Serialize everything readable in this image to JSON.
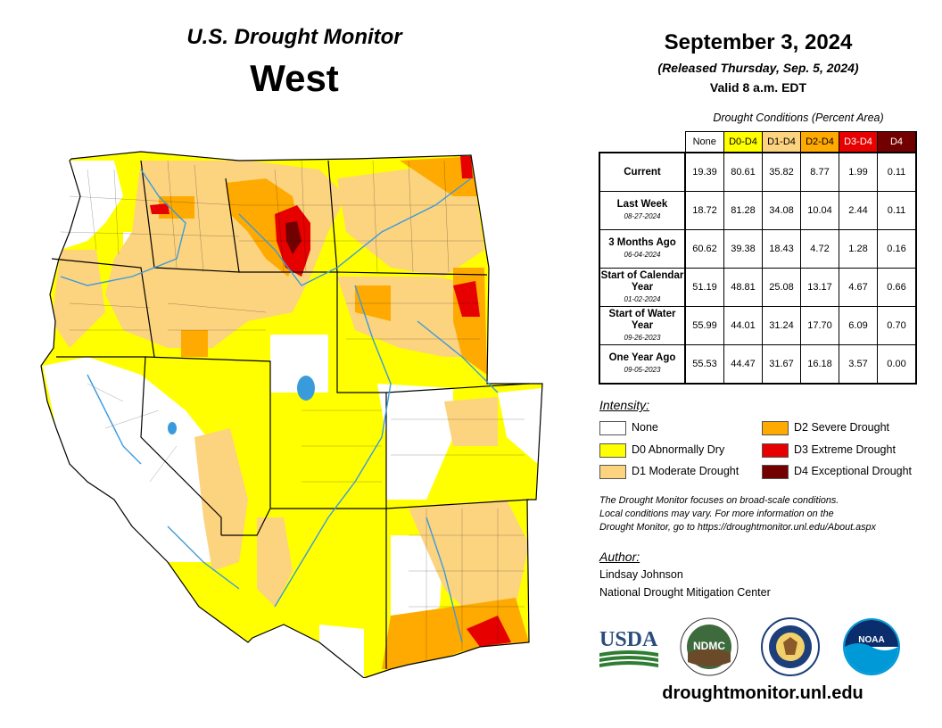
{
  "header": {
    "title": "U.S. Drought Monitor",
    "region": "West",
    "date": "September 3, 2024",
    "released": "(Released Thursday, Sep. 5, 2024)",
    "valid": "Valid 8 a.m. EDT"
  },
  "table": {
    "caption": "Drought Conditions (Percent Area)",
    "columns": [
      "None",
      "D0-D4",
      "D1-D4",
      "D2-D4",
      "D3-D4",
      "D4"
    ],
    "column_colors": [
      "#ffffff",
      "#ffff00",
      "#fcd37f",
      "#ffaa00",
      "#e60000",
      "#730000"
    ],
    "column_text_colors": [
      "#000000",
      "#000000",
      "#000000",
      "#000000",
      "#ffffff",
      "#ffffff"
    ],
    "rows": [
      {
        "label": "Current",
        "sub": "",
        "values": [
          "19.39",
          "80.61",
          "35.82",
          "8.77",
          "1.99",
          "0.11"
        ]
      },
      {
        "label": "Last Week",
        "sub": "08-27-2024",
        "values": [
          "18.72",
          "81.28",
          "34.08",
          "10.04",
          "2.44",
          "0.11"
        ]
      },
      {
        "label": "3 Months Ago",
        "sub": "06-04-2024",
        "values": [
          "60.62",
          "39.38",
          "18.43",
          "4.72",
          "1.28",
          "0.16"
        ]
      },
      {
        "label": "Start of Calendar Year",
        "sub": "01-02-2024",
        "values": [
          "51.19",
          "48.81",
          "25.08",
          "13.17",
          "4.67",
          "0.66"
        ]
      },
      {
        "label": "Start of Water Year",
        "sub": "09-26-2023",
        "values": [
          "55.99",
          "44.01",
          "31.24",
          "17.70",
          "6.09",
          "0.70"
        ]
      },
      {
        "label": "One Year Ago",
        "sub": "09-05-2023",
        "values": [
          "55.53",
          "44.47",
          "31.67",
          "16.18",
          "3.57",
          "0.00"
        ]
      }
    ]
  },
  "legend": {
    "title": "Intensity:",
    "items": [
      {
        "label": "None",
        "color": "#ffffff"
      },
      {
        "label": "D0 Abnormally Dry",
        "color": "#ffff00"
      },
      {
        "label": "D1 Moderate Drought",
        "color": "#fcd37f"
      },
      {
        "label": "D2 Severe Drought",
        "color": "#ffaa00"
      },
      {
        "label": "D3 Extreme Drought",
        "color": "#e60000"
      },
      {
        "label": "D4 Exceptional Drought",
        "color": "#730000"
      }
    ]
  },
  "note": {
    "line1": "The Drought Monitor focuses on broad-scale conditions.",
    "line2": "Local conditions may vary. For more information on the",
    "line3": "Drought Monitor, go to https://droughtmonitor.unl.edu/About.aspx"
  },
  "author": {
    "title": "Author:",
    "name": "Lindsay Johnson",
    "org": "National Drought Mitigation Center"
  },
  "logos": {
    "usda": "USDA",
    "ndmc": "NDMC",
    "noaa": "NOAA"
  },
  "footer": {
    "site": "droughtmonitor.unl.edu"
  }
}
